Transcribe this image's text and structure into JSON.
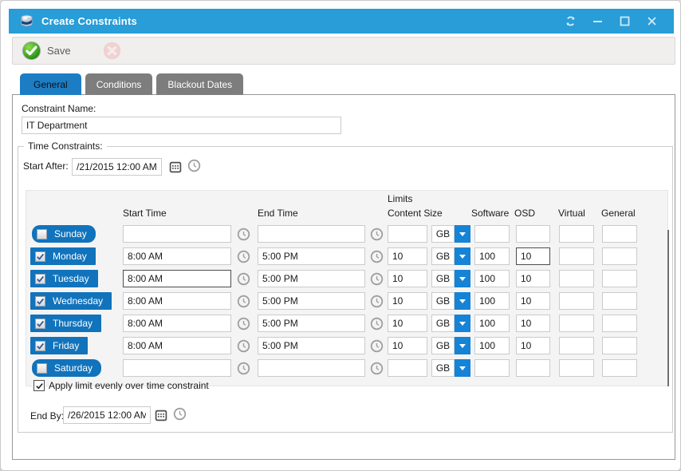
{
  "window": {
    "title": "Create Constraints",
    "controls": [
      {
        "name": "refresh",
        "icon": "refresh-icon"
      },
      {
        "name": "minimize",
        "icon": "minimize-icon"
      },
      {
        "name": "maximize",
        "icon": "maximize-icon"
      },
      {
        "name": "close",
        "icon": "close-icon"
      }
    ],
    "app_icon": "database-drum-icon"
  },
  "toolbar": {
    "save_label": "Save",
    "save_icon": "green-check-circle-icon",
    "cancel_icon": "red-x-circle-icon-disabled"
  },
  "tabs": [
    {
      "label": "General",
      "active": true
    },
    {
      "label": "Conditions",
      "active": false
    },
    {
      "label": "Blackout Dates",
      "active": false
    }
  ],
  "form": {
    "constraint_name_label": "Constraint Name:",
    "constraint_name_value": "IT Department",
    "time_constraints_legend": "Time Constraints:",
    "start_after_label": "Start After:",
    "start_after_value": "/21/2015 12:00 AM",
    "end_by_label": "End By:",
    "end_by_value": "/26/2015 12:00 AM",
    "apply_limit_label": "Apply limit evenly over time constraint",
    "apply_limit_checked": true
  },
  "grid": {
    "headers": {
      "limits": "Limits",
      "start_time": "Start Time",
      "end_time": "End Time",
      "content_size": "Content Size",
      "software": "Software",
      "osd": "OSD",
      "virtual": "Virtual",
      "general": "General"
    },
    "rows": [
      {
        "day": "Sunday",
        "checked": false,
        "start": "",
        "end": "",
        "content_size": "",
        "unit": "GB",
        "software": "",
        "osd": "",
        "virtual": "",
        "general": ""
      },
      {
        "day": "Monday",
        "checked": true,
        "start": "8:00 AM",
        "end": "5:00 PM",
        "content_size": "10",
        "unit": "GB",
        "software": "100",
        "osd": "10",
        "virtual": "",
        "general": "",
        "osd_focused": true
      },
      {
        "day": "Tuesday",
        "checked": true,
        "start": "8:00 AM",
        "end": "5:00 PM",
        "content_size": "10",
        "unit": "GB",
        "software": "100",
        "osd": "10",
        "virtual": "",
        "general": "",
        "start_focused": true
      },
      {
        "day": "Wednesday",
        "checked": true,
        "start": "8:00 AM",
        "end": "5:00 PM",
        "content_size": "10",
        "unit": "GB",
        "software": "100",
        "osd": "10",
        "virtual": "",
        "general": ""
      },
      {
        "day": "Thursday",
        "checked": true,
        "start": "8:00 AM",
        "end": "5:00 PM",
        "content_size": "10",
        "unit": "GB",
        "software": "100",
        "osd": "10",
        "virtual": "",
        "general": ""
      },
      {
        "day": "Friday",
        "checked": true,
        "start": "8:00 AM",
        "end": "5:00 PM",
        "content_size": "10",
        "unit": "GB",
        "software": "100",
        "osd": "10",
        "virtual": "",
        "general": ""
      },
      {
        "day": "Saturday",
        "checked": false,
        "start": "",
        "end": "",
        "content_size": "",
        "unit": "GB",
        "software": "",
        "osd": "",
        "virtual": "",
        "general": ""
      }
    ]
  },
  "colors": {
    "titlebar_blue": "#289dd7",
    "tab_active_blue": "#1d7dc4",
    "day_button_blue": "#1173bc",
    "unit_arrow_blue": "#1583d6",
    "save_green": "#36a227",
    "cancel_pink": "#f0bcbc"
  }
}
